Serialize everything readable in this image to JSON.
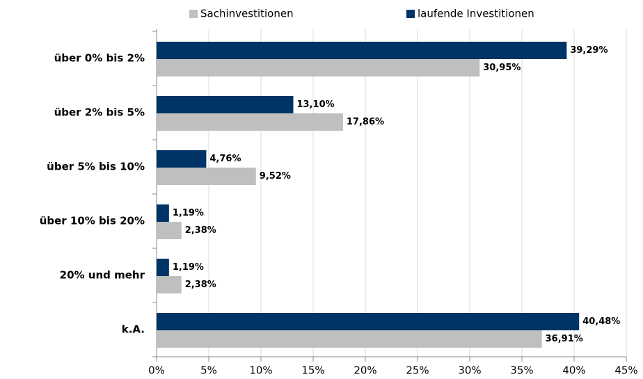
{
  "chart_data": {
    "type": "hbar",
    "categories": [
      "über 0% bis 2%",
      "über 2% bis 5%",
      "über 5% bis 10%",
      "über 10% bis 20%",
      "20% und mehr",
      "k.A."
    ],
    "series": [
      {
        "name": "Sachinvestitionen",
        "color": "#bfbfbf",
        "values": [
          30.95,
          17.86,
          9.52,
          2.38,
          2.38,
          36.91
        ],
        "value_labels": [
          "30,95%",
          "17,86%",
          "9,52%",
          "2,38%",
          "2,38%",
          "36,91%"
        ]
      },
      {
        "name": "laufende Investitionen",
        "color": "#003366",
        "values": [
          39.29,
          13.1,
          4.76,
          1.19,
          1.19,
          40.48
        ],
        "value_labels": [
          "39,29%",
          "13,10%",
          "4,76%",
          "1,19%",
          "1,19%",
          "40,48%"
        ]
      }
    ],
    "xlim": [
      0,
      45
    ],
    "xticks": [
      {
        "value": 0,
        "label": "0%"
      },
      {
        "value": 5,
        "label": "5%"
      },
      {
        "value": 10,
        "label": "10%"
      },
      {
        "value": 15,
        "label": "15%"
      },
      {
        "value": 20,
        "label": "20%"
      },
      {
        "value": 25,
        "label": "25%"
      },
      {
        "value": 30,
        "label": "30%"
      },
      {
        "value": 35,
        "label": "35%"
      },
      {
        "value": 40,
        "label": "40%"
      },
      {
        "value": 45,
        "label": "45%"
      }
    ],
    "grid": true,
    "legend": "top"
  }
}
